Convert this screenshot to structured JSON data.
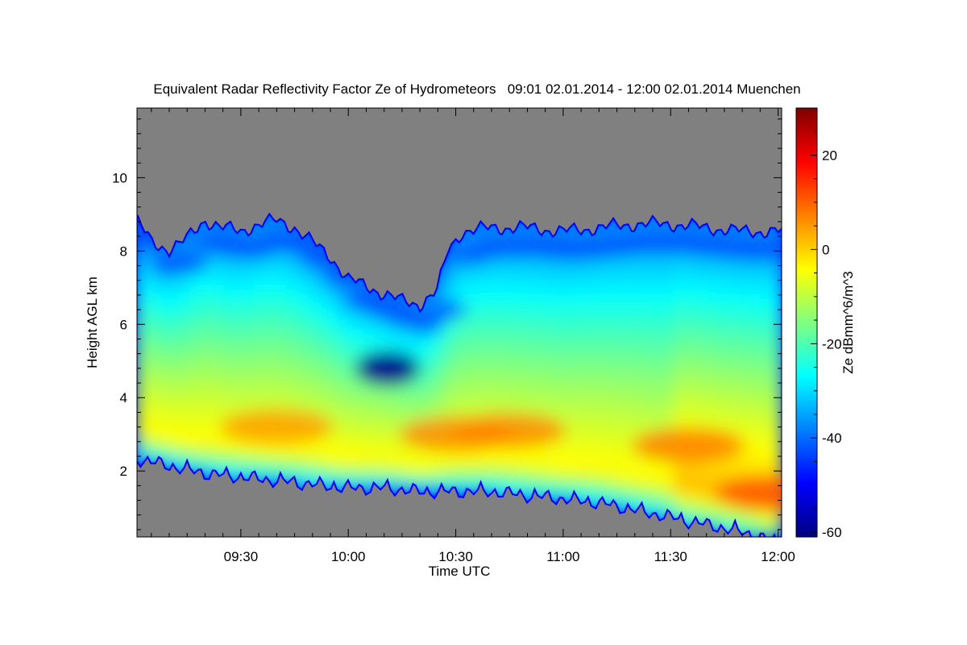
{
  "chart_data": {
    "type": "heatmap",
    "title": "Equivalent Radar Reflectivity Factor Ze of Hydrometeors   09:01 02.01.2014 - 12:00 02.01.2014 Muenchen",
    "xlabel": "Time UTC",
    "ylabel": "Height AGL km",
    "colorbar_label": "Ze dBmm^6/m^3",
    "x_range": [
      "09:01",
      "12:00"
    ],
    "y_range": [
      0.2,
      11.9
    ],
    "x_ticks": [
      {
        "value": 30,
        "label": "09:30"
      },
      {
        "value": 60,
        "label": "10:00"
      },
      {
        "value": 90,
        "label": "10:30"
      },
      {
        "value": 120,
        "label": "11:00"
      },
      {
        "value": 150,
        "label": "11:30"
      },
      {
        "value": 180,
        "label": "12:00"
      }
    ],
    "y_ticks": [
      {
        "value": 2,
        "label": "2"
      },
      {
        "value": 4,
        "label": "4"
      },
      {
        "value": 6,
        "label": "6"
      },
      {
        "value": 8,
        "label": "8"
      },
      {
        "value": 10,
        "label": "10"
      }
    ],
    "colorbar_range": [
      -61,
      30
    ],
    "colorbar_ticks": [
      {
        "value": -60,
        "label": "-60"
      },
      {
        "value": -40,
        "label": "-40"
      },
      {
        "value": -20,
        "label": "-20"
      },
      {
        "value": 0,
        "label": "0"
      },
      {
        "value": 20,
        "label": "20"
      }
    ],
    "colormap": [
      "#000080",
      "#0000ff",
      "#0080ff",
      "#00ffff",
      "#80ff80",
      "#ffff00",
      "#ff8000",
      "#ff0000",
      "#800000"
    ],
    "no_data_color": "#808080",
    "cloud_top_km": [
      [
        1,
        8.8
      ],
      [
        5,
        8.2
      ],
      [
        10,
        8.0
      ],
      [
        15,
        8.3
      ],
      [
        20,
        8.8
      ],
      [
        25,
        8.6
      ],
      [
        30,
        8.5
      ],
      [
        35,
        8.7
      ],
      [
        40,
        8.8
      ],
      [
        45,
        8.6
      ],
      [
        50,
        8.2
      ],
      [
        55,
        7.8
      ],
      [
        60,
        7.2
      ],
      [
        65,
        7.0
      ],
      [
        70,
        6.8
      ],
      [
        75,
        6.6
      ],
      [
        80,
        6.5
      ],
      [
        85,
        6.9
      ],
      [
        88,
        8.0
      ],
      [
        92,
        8.5
      ],
      [
        100,
        8.6
      ],
      [
        110,
        8.6
      ],
      [
        120,
        8.5
      ],
      [
        130,
        8.6
      ],
      [
        140,
        8.7
      ],
      [
        150,
        8.7
      ],
      [
        160,
        8.6
      ],
      [
        170,
        8.5
      ],
      [
        180,
        8.5
      ]
    ],
    "cloud_base_km": [
      [
        1,
        2.6
      ],
      [
        10,
        2.4
      ],
      [
        20,
        2.2
      ],
      [
        30,
        2.1
      ],
      [
        40,
        2.0
      ],
      [
        50,
        1.9
      ],
      [
        60,
        1.8
      ],
      [
        70,
        1.8
      ],
      [
        80,
        1.7
      ],
      [
        90,
        1.7
      ],
      [
        100,
        1.7
      ],
      [
        110,
        1.6
      ],
      [
        120,
        1.5
      ],
      [
        130,
        1.4
      ],
      [
        140,
        1.2
      ],
      [
        150,
        1.0
      ],
      [
        160,
        0.8
      ],
      [
        170,
        0.6
      ],
      [
        180,
        0.3
      ]
    ],
    "reflectivity_core_dbz": [
      {
        "x": 40,
        "y": 3.2,
        "value": 5
      },
      {
        "x": 90,
        "y": 3.0,
        "value": 7
      },
      {
        "x": 105,
        "y": 3.1,
        "value": 7
      },
      {
        "x": 155,
        "y": 2.7,
        "value": 8
      },
      {
        "x": 178,
        "y": 1.4,
        "value": 12
      }
    ],
    "clear_air_pocket": {
      "x": 71,
      "y": 4.8,
      "value": -60
    }
  }
}
